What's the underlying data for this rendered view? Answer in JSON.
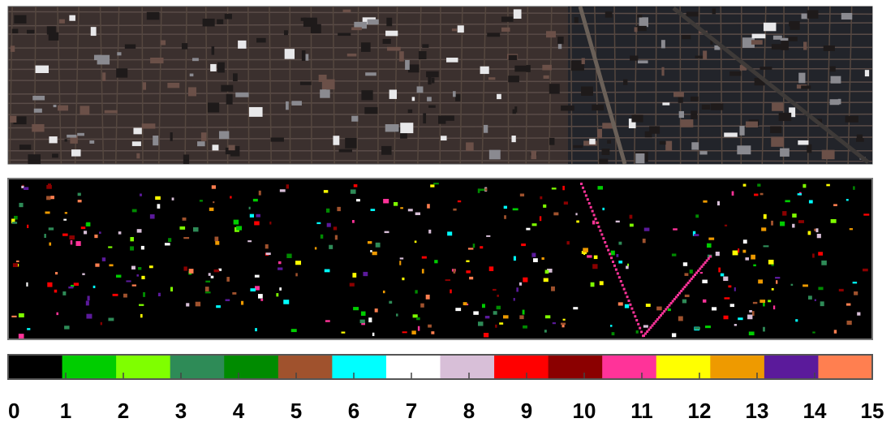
{
  "colorbar": {
    "colors": [
      "#000000",
      "#00cd00",
      "#7fff00",
      "#2e8b57",
      "#008b00",
      "#a0522d",
      "#00ffff",
      "#ffffff",
      "#d8bfd8",
      "#ff0000",
      "#8b0000",
      "#ff3399",
      "#ffff00",
      "#ee9a00",
      "#5b1a9b",
      "#ff7f50"
    ],
    "ticks": [
      0,
      1,
      2,
      3,
      4,
      5,
      6,
      7,
      8,
      9,
      10,
      11,
      12,
      13,
      14,
      15
    ]
  }
}
